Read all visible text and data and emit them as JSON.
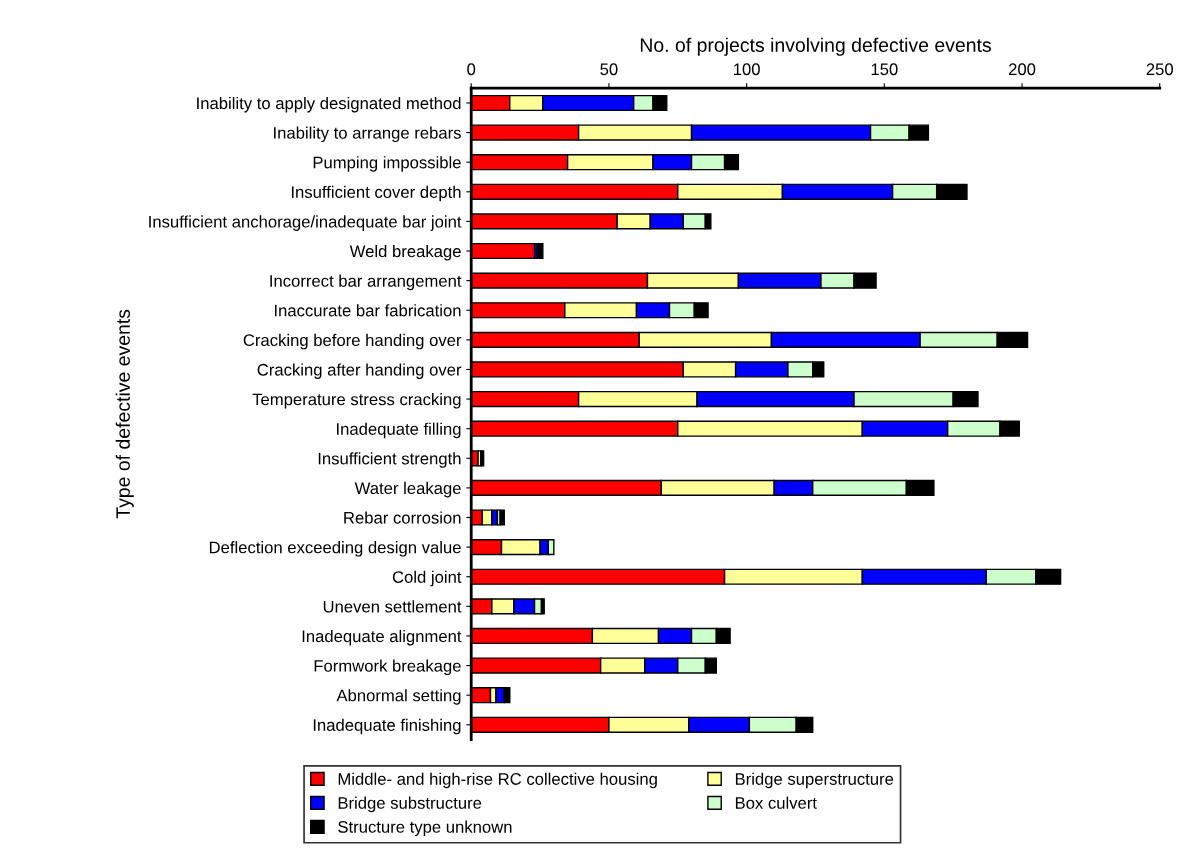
{
  "chart_data": {
    "type": "bar",
    "orientation": "horizontal",
    "stacked": true,
    "xlabel": "No. of projects involving defective events",
    "ylabel": "Type of defective events",
    "categories": [
      "Inability to apply designated method",
      "Inability to arrange rebars",
      "Pumping impossible",
      "Insufficient cover depth",
      "Insufficient anchorage/inadequate bar joint",
      "Weld breakage",
      "Incorrect bar arrangement",
      "Inaccurate bar fabrication",
      "Cracking before handing over",
      "Cracking after handing over",
      "Temperature stress cracking",
      "Inadequate filling",
      "Insufficient strength",
      "Water leakage",
      "Rebar corrosion",
      "Deflection exceeding design value",
      "Cold joint",
      "Uneven settlement",
      "Inadequate alignment",
      "Formwork breakage",
      "Abnormal setting",
      "Inadequate finishing"
    ],
    "series": [
      {
        "name": "Middle- and high-rise RC collective housing",
        "color": "#ff0000",
        "values": [
          14,
          39,
          35,
          75,
          53,
          23,
          64,
          34,
          61,
          77,
          39,
          75,
          2.5,
          69,
          4,
          11,
          92,
          7.5,
          44,
          47,
          7,
          50
        ]
      },
      {
        "name": "Bridge superstructure",
        "color": "#ffff99",
        "values": [
          12,
          41,
          31,
          38,
          12,
          0,
          33,
          26,
          48,
          19,
          43,
          67,
          1,
          41,
          3.5,
          14,
          50,
          8,
          24,
          16,
          2,
          29
        ]
      },
      {
        "name": "Bridge substructure",
        "color": "#0000ff",
        "values": [
          33,
          65,
          14,
          40,
          12,
          1,
          30,
          12,
          54,
          19,
          57,
          31,
          0,
          14,
          2,
          3,
          45,
          7.5,
          12,
          12,
          3,
          22
        ]
      },
      {
        "name": "Box culvert",
        "color": "#ccffcc",
        "values": [
          7,
          14,
          12,
          16,
          8,
          0,
          12,
          9,
          28,
          9,
          36,
          19,
          0,
          34,
          1,
          2,
          18,
          2.5,
          9,
          10,
          0,
          17
        ]
      },
      {
        "name": "Structure type unknown",
        "color": "#000000",
        "values": [
          5,
          7,
          5,
          11,
          2,
          2,
          8,
          5,
          11,
          4,
          9,
          7,
          1,
          10,
          1.5,
          0,
          9,
          1,
          5,
          4,
          2,
          6
        ]
      }
    ],
    "xlim": [
      0,
      250
    ],
    "xticks": [
      0,
      50,
      100,
      150,
      200,
      250
    ],
    "grid": false,
    "legend": "bottom"
  }
}
